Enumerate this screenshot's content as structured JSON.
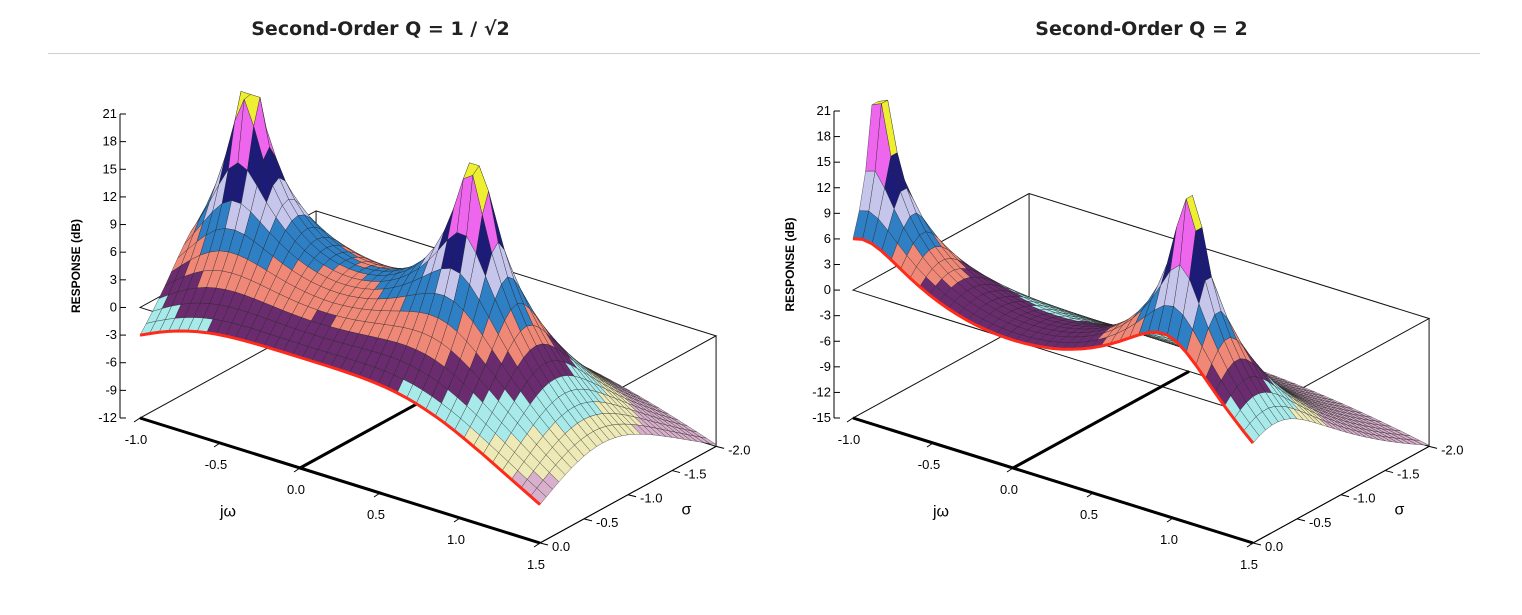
{
  "chart_data": [
    {
      "type": "surface3d",
      "title": "Second-Order Q = 1 / √2",
      "Q": 0.7071,
      "zlabel": "RESPONSE (dB)",
      "xlabel": "jω",
      "ylabel": "σ",
      "zlim": [
        -12,
        21
      ],
      "zticks": [
        "21",
        "18",
        "15",
        "12",
        "9",
        "6",
        "3",
        "0",
        "-3",
        "-6",
        "-9",
        "-12"
      ],
      "xlim": [
        -1.0,
        1.5
      ],
      "xticks": [
        "-1.0",
        "-0.5",
        "0.0",
        "0.5",
        "1.0",
        "1.5"
      ],
      "ylim": [
        0.0,
        -2.0
      ],
      "yticks": [
        "0.0",
        "-0.5",
        "-1.0",
        "-1.5",
        "-2.0"
      ],
      "poles": [
        {
          "jw": -0.707,
          "sigma": -0.707
        },
        {
          "jw": 0.707,
          "sigma": -0.707
        }
      ],
      "peak_db": 21,
      "band_step_db": 3,
      "band_colors": [
        "#6a2c6f",
        "#f08878",
        "#2f7fc4",
        "#c6c6ec",
        "#1c1c78",
        "#ee66ee",
        "#eeee33",
        "#44dddd"
      ],
      "low_band_colors": [
        "#a8eaea",
        "#eeeab8",
        "#d9b0cc"
      ],
      "edge_color": "#ff2a1a"
    },
    {
      "type": "surface3d",
      "title": "Second-Order Q = 2",
      "Q": 2,
      "zlabel": "RESPONSE (dB)",
      "xlabel": "jω",
      "ylabel": "σ",
      "zlim": [
        -15,
        21
      ],
      "zticks": [
        "21",
        "18",
        "15",
        "12",
        "9",
        "6",
        "3",
        "0",
        "-3",
        "-6",
        "-9",
        "-12",
        "-15"
      ],
      "xlim": [
        -1.0,
        1.5
      ],
      "xticks": [
        "-1.0",
        "-0.5",
        "0.0",
        "0.5",
        "1.0",
        "1.5"
      ],
      "ylim": [
        0.0,
        -2.0
      ],
      "yticks": [
        "0.0",
        "-0.5",
        "-1.0",
        "-1.5",
        "-2.0"
      ],
      "poles": [
        {
          "jw": -0.968,
          "sigma": -0.25
        },
        {
          "jw": 0.968,
          "sigma": -0.25
        }
      ],
      "peak_db": 21,
      "band_step_db": 3,
      "band_colors": [
        "#6a2c6f",
        "#f08878",
        "#2f7fc4",
        "#c6c6ec",
        "#1c1c78",
        "#ee66ee",
        "#eeee33",
        "#44dddd"
      ],
      "low_band_colors": [
        "#a8eaea",
        "#eeeab8",
        "#d9b0cc"
      ],
      "edge_color": "#ff2a1a"
    }
  ]
}
